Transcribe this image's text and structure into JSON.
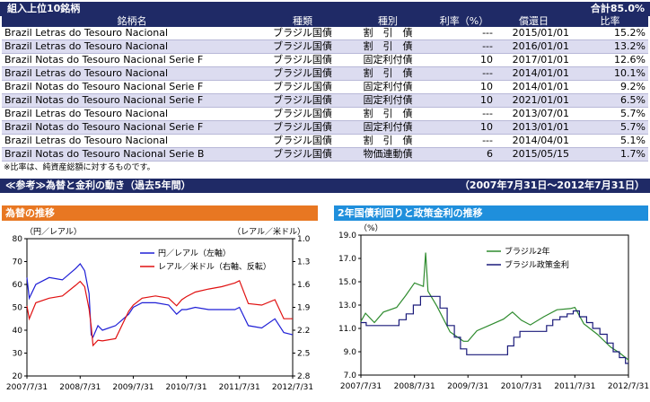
{
  "holdings": {
    "title": "組入上位10銘柄",
    "total": "合計85.0%",
    "headers": [
      "銘柄名",
      "種類",
      "種別",
      "利率（%）",
      "償還日",
      "比率"
    ],
    "rows": [
      [
        "Brazil Letras do Tesouro Nacional",
        "ブラジル国債",
        "割　引　債",
        "---",
        "2015/01/01",
        "15.2%"
      ],
      [
        "Brazil Letras do Tesouro Nacional",
        "ブラジル国債",
        "割　引　債",
        "---",
        "2016/01/01",
        "13.2%"
      ],
      [
        "Brazil Notas do Tesouro Nacional Serie F",
        "ブラジル国債",
        "固定利付債",
        "10",
        "2017/01/01",
        "12.6%"
      ],
      [
        "Brazil Letras do Tesouro Nacional",
        "ブラジル国債",
        "割　引　債",
        "---",
        "2014/01/01",
        "10.1%"
      ],
      [
        "Brazil Notas do Tesouro Nacional Serie F",
        "ブラジル国債",
        "固定利付債",
        "10",
        "2014/01/01",
        "9.2%"
      ],
      [
        "Brazil Notas do Tesouro Nacional Serie F",
        "ブラジル国債",
        "固定利付債",
        "10",
        "2021/01/01",
        "6.5%"
      ],
      [
        "Brazil Letras do Tesouro Nacional",
        "ブラジル国債",
        "割　引　債",
        "---",
        "2013/07/01",
        "5.7%"
      ],
      [
        "Brazil Notas do Tesouro Nacional Serie F",
        "ブラジル国債",
        "固定利付債",
        "10",
        "2013/01/01",
        "5.7%"
      ],
      [
        "Brazil Letras do Tesouro Nacional",
        "ブラジル国債",
        "割　引　債",
        "---",
        "2014/04/01",
        "5.1%"
      ],
      [
        "Brazil Notas do Tesouro Nacional Serie B",
        "ブラジル国債",
        "物価連動債",
        "6",
        "2015/05/15",
        "1.7%"
      ]
    ],
    "note": "※比率は、純資産総額に対するものです。"
  },
  "reference": {
    "title": "≪参考≫為替と金利の動き（過去5年間）",
    "period": "（2007年7月31日～2012年7月31日）"
  },
  "colors": {
    "navy": "#1f2a66",
    "orange": "#e87722",
    "blue_header": "#1f8fdc",
    "series_fx_yen": "#1f1fd6",
    "series_fx_usd": "#e01010",
    "series_rate_2y": "#2e8b2e",
    "series_rate_policy": "#1a1a7a"
  },
  "chart_data": [
    {
      "type": "line",
      "title": "為替の推移",
      "ylabel": "（円／レアル）",
      "y2label": "（レアル／米ドル）",
      "ylim": [
        20,
        80
      ],
      "y2lim": [
        1.0,
        2.8
      ],
      "y2_reversed": true,
      "yticks": [
        "80",
        "70",
        "60",
        "50",
        "40",
        "30",
        "20"
      ],
      "y2ticks": [
        "1.0",
        "1.3",
        "1.6",
        "1.9",
        "2.2",
        "2.5",
        "2.8"
      ],
      "xticks": [
        "2007/7/31",
        "2008/7/31",
        "2009/7/31",
        "2010/7/31",
        "2011/7/31",
        "2012/7/31"
      ],
      "grid": false,
      "legend_position": "top-right",
      "series": [
        {
          "name": "円／レアル（左軸）",
          "axis": "left",
          "x": [
            "2007/7/31",
            "2007/8/16",
            "2007/9/30",
            "2007/12/31",
            "2008/3/31",
            "2008/6/30",
            "2008/7/31",
            "2008/8/31",
            "2008/9/30",
            "2008/10/15",
            "2008/10/27",
            "2008/11/30",
            "2008/12/31",
            "2009/3/31",
            "2009/6/30",
            "2009/7/31",
            "2009/9/30",
            "2009/12/31",
            "2010/3/31",
            "2010/5/25",
            "2010/6/30",
            "2010/7/31",
            "2010/9/30",
            "2010/12/31",
            "2011/3/31",
            "2011/6/30",
            "2011/7/31",
            "2011/9/30",
            "2011/12/31",
            "2012/3/31",
            "2012/5/31",
            "2012/7/31"
          ],
          "values": [
            63,
            54,
            60,
            63,
            62,
            67,
            69,
            66,
            56,
            38,
            37,
            42,
            40,
            42,
            47,
            50,
            52,
            52,
            51,
            47,
            49,
            49,
            50,
            49,
            49,
            49,
            50,
            42,
            41,
            45,
            39,
            38
          ]
        },
        {
          "name": "レアル／米ドル（右軸、反転）",
          "axis": "right",
          "x": [
            "2007/7/31",
            "2007/8/16",
            "2007/9/30",
            "2007/12/31",
            "2008/3/31",
            "2008/6/30",
            "2008/7/31",
            "2008/8/31",
            "2008/9/30",
            "2008/10/15",
            "2008/10/27",
            "2008/11/30",
            "2008/12/31",
            "2009/3/31",
            "2009/6/30",
            "2009/7/31",
            "2009/9/30",
            "2009/12/31",
            "2010/3/31",
            "2010/5/25",
            "2010/6/30",
            "2010/7/31",
            "2010/9/30",
            "2010/12/31",
            "2011/3/31",
            "2011/6/30",
            "2011/7/31",
            "2011/9/30",
            "2011/12/31",
            "2012/3/31",
            "2012/5/31",
            "2012/7/31"
          ],
          "values": [
            1.88,
            2.05,
            1.84,
            1.78,
            1.75,
            1.61,
            1.56,
            1.63,
            1.92,
            2.15,
            2.4,
            2.33,
            2.34,
            2.31,
            1.95,
            1.87,
            1.78,
            1.75,
            1.78,
            1.88,
            1.8,
            1.76,
            1.7,
            1.66,
            1.63,
            1.58,
            1.55,
            1.85,
            1.87,
            1.8,
            2.05,
            2.05
          ]
        }
      ]
    },
    {
      "type": "line",
      "title": "2年国債利回りと政策金利の推移",
      "ylabel": "（%）",
      "ylim": [
        7.0,
        19.0
      ],
      "yticks": [
        "19.0",
        "17.0",
        "15.0",
        "13.0",
        "11.0",
        "9.0",
        "7.0"
      ],
      "xticks": [
        "2007/7/31",
        "2008/7/31",
        "2009/7/31",
        "2010/7/31",
        "2011/7/31",
        "2012/7/31"
      ],
      "grid": false,
      "legend_position": "top-right",
      "series": [
        {
          "name": "ブラジル2年",
          "x": [
            "2007/7/31",
            "2007/8/31",
            "2007/10/31",
            "2007/12/31",
            "2008/3/31",
            "2008/5/31",
            "2008/7/31",
            "2008/9/30",
            "2008/10/15",
            "2008/10/31",
            "2008/12/31",
            "2009/3/31",
            "2009/6/30",
            "2009/7/31",
            "2009/9/30",
            "2009/12/31",
            "2010/3/31",
            "2010/5/31",
            "2010/7/31",
            "2010/9/30",
            "2010/12/31",
            "2011/3/31",
            "2011/6/30",
            "2011/7/31",
            "2011/9/30",
            "2011/12/31",
            "2012/3/31",
            "2012/5/31",
            "2012/7/31"
          ],
          "values": [
            11.6,
            12.3,
            11.5,
            12.4,
            12.8,
            13.8,
            14.9,
            14.6,
            17.5,
            14.2,
            12.9,
            10.7,
            9.9,
            9.9,
            10.8,
            11.3,
            11.8,
            12.4,
            11.7,
            11.3,
            12.0,
            12.6,
            12.7,
            12.8,
            11.4,
            10.5,
            9.4,
            8.9,
            8.3
          ]
        },
        {
          "name": "ブラジル政策金利",
          "step": true,
          "x": [
            "2007/7/31",
            "2007/9/5",
            "2007/12/31",
            "2008/4/16",
            "2008/6/4",
            "2008/7/23",
            "2008/9/10",
            "2009/1/21",
            "2009/3/11",
            "2009/4/29",
            "2009/6/10",
            "2009/7/22",
            "2010/4/28",
            "2010/6/9",
            "2010/7/21",
            "2011/1/19",
            "2011/3/2",
            "2011/4/20",
            "2011/6/8",
            "2011/7/20",
            "2011/8/31",
            "2011/10/19",
            "2011/11/30",
            "2012/1/18",
            "2012/3/7",
            "2012/4/18",
            "2012/5/30",
            "2012/7/11",
            "2012/7/31"
          ],
          "values": [
            11.5,
            11.25,
            11.25,
            11.75,
            12.25,
            13.0,
            13.75,
            12.75,
            11.25,
            10.25,
            9.25,
            8.75,
            9.5,
            10.25,
            10.75,
            11.25,
            11.75,
            12.0,
            12.25,
            12.5,
            12.0,
            11.5,
            11.0,
            10.5,
            9.75,
            9.0,
            8.5,
            8.0,
            8.0
          ]
        }
      ]
    }
  ]
}
